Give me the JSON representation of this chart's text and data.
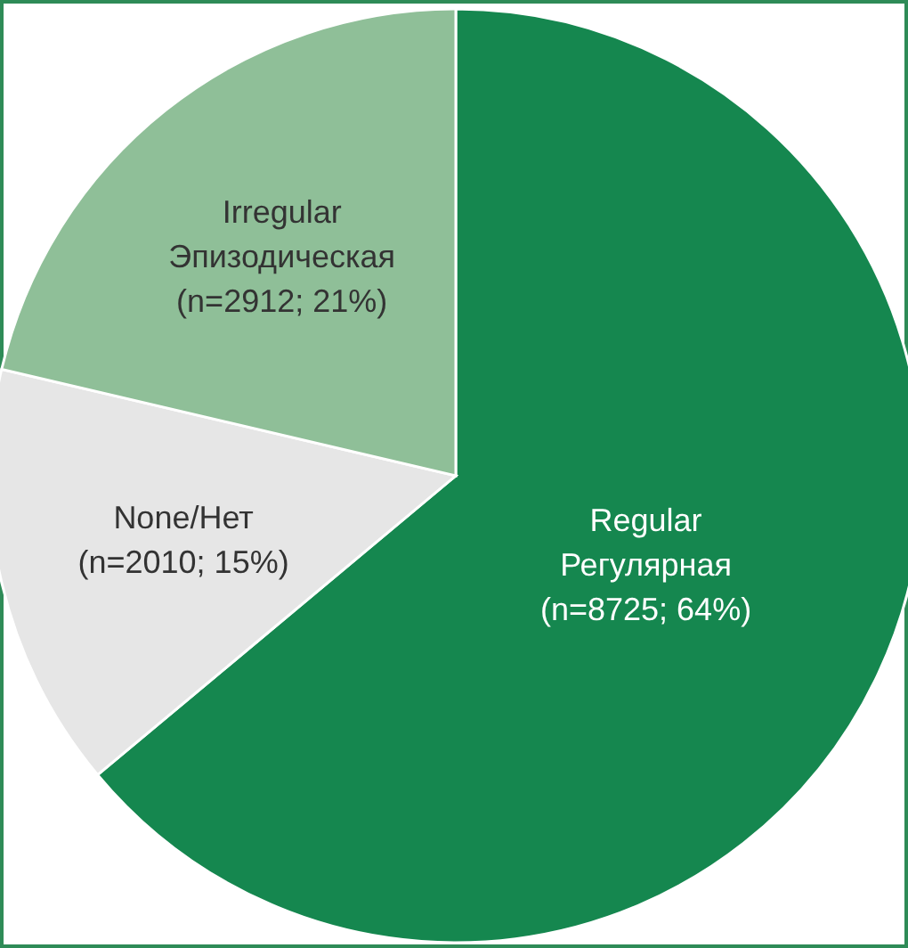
{
  "chart_data": {
    "type": "pie",
    "categories": [
      "Regular Регулярная",
      "None/Нет",
      "Irregular Эпизодическая"
    ],
    "values": [
      8725,
      2010,
      2912
    ],
    "value_labels": [
      "(n=8725; 64%)",
      "(n=2010; 15%)",
      "(n=2912; 21%)"
    ],
    "colors": [
      "#15874f",
      "#e6e6e6",
      "#8fbf98"
    ]
  }
}
